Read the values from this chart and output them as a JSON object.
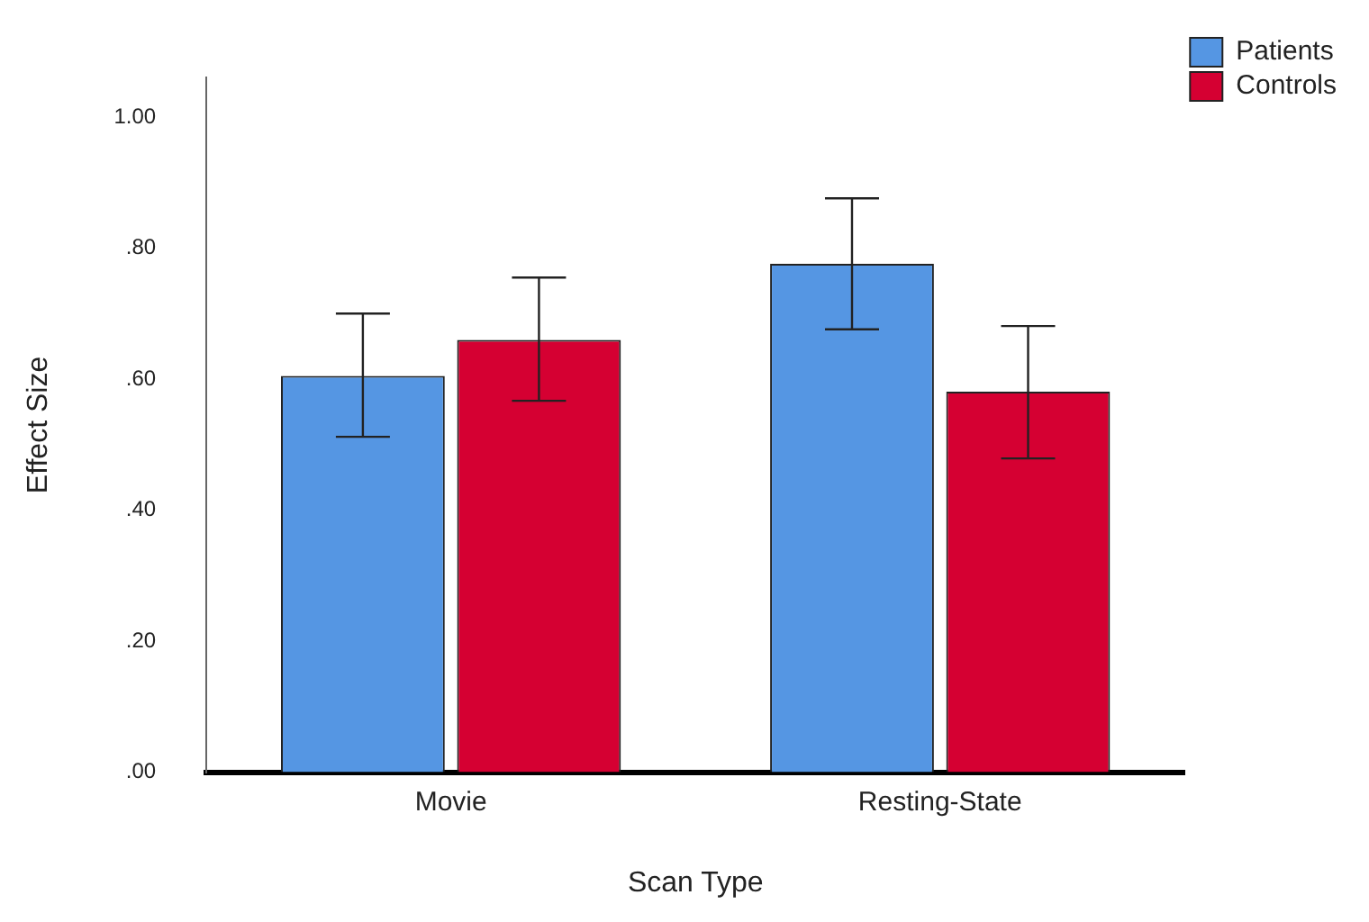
{
  "chart_data": {
    "type": "bar",
    "xlabel": "Scan Type",
    "ylabel": "Effect Size",
    "categories": [
      "Movie",
      "Resting-State"
    ],
    "series": [
      {
        "name": "Patients",
        "color": "#5596e3",
        "values": [
          0.605,
          0.776
        ],
        "errors": [
          [
            0.512,
            0.7
          ],
          [
            0.676,
            0.876
          ]
        ]
      },
      {
        "name": "Controls",
        "color": "#d50032",
        "values": [
          0.66,
          0.581
        ],
        "errors": [
          [
            0.567,
            0.755
          ],
          [
            0.479,
            0.681
          ]
        ]
      }
    ],
    "ylim": [
      0,
      1.06
    ],
    "yticks": [
      {
        "value": 0,
        "label": ".00"
      },
      {
        "value": 0.2,
        "label": ".20"
      },
      {
        "value": 0.4,
        "label": ".40"
      },
      {
        "value": 0.6,
        "label": ".60"
      },
      {
        "value": 0.8,
        "label": ".80"
      },
      {
        "value": 1,
        "label": "1.00"
      }
    ],
    "grid": false,
    "legend": "top right"
  }
}
